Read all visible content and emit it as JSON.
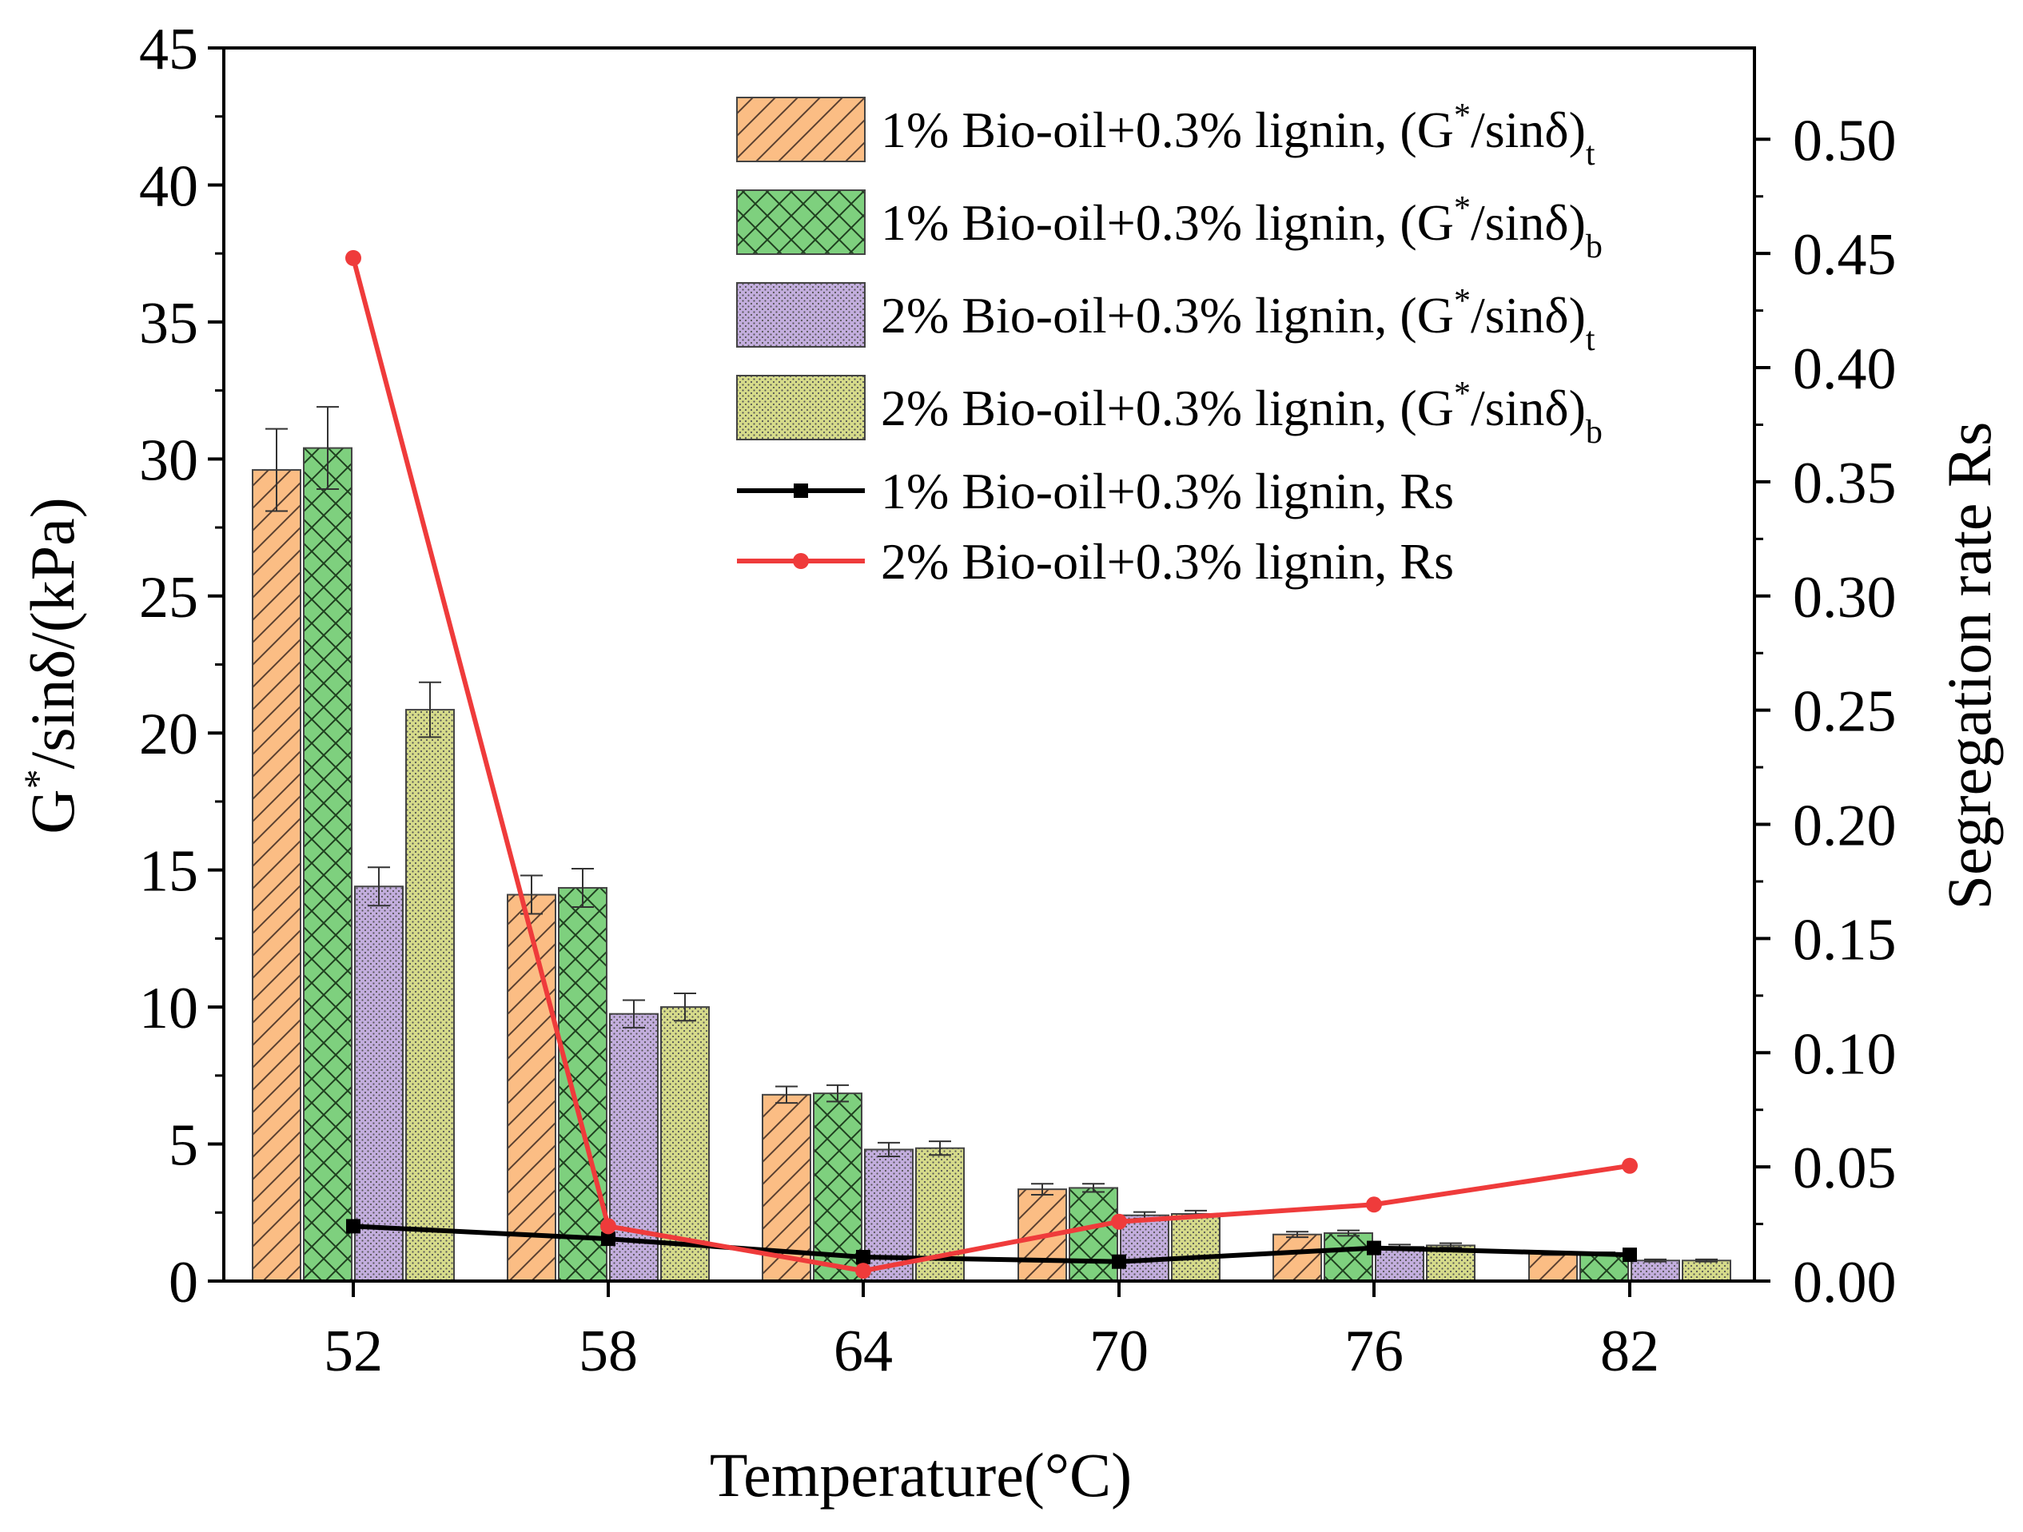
{
  "chart_data": {
    "type": "bar",
    "title": "",
    "xlabel": "Temperature(°C)",
    "ylabel": "G*/sinδ/(kPa)",
    "ylabel_parts": {
      "main": "G",
      "sup": "*",
      "rest": "/sinδ/(kPa)"
    },
    "y2label": "Segregation rate Rs",
    "categories": [
      "52",
      "58",
      "64",
      "70",
      "76",
      "82"
    ],
    "ylim": [
      0,
      45
    ],
    "yticks": [
      "0",
      "5",
      "10",
      "15",
      "20",
      "25",
      "30",
      "35",
      "40",
      "45"
    ],
    "y2lim": [
      0,
      0.54
    ],
    "y2ticks": [
      "0.00",
      "0.05",
      "0.10",
      "0.15",
      "0.20",
      "0.25",
      "0.30",
      "0.35",
      "0.40",
      "0.45",
      "0.50"
    ],
    "legend_position": "top-right",
    "series": [
      {
        "name": "1% Bio-oil+0.3% lignin, (G*/sinδ)t",
        "label_main": "1% Bio-oil+0.3% lignin, (G",
        "label_sup": "*",
        "label_mid": "/sinδ)",
        "label_sub": "t",
        "kind": "bar",
        "color": "#fbbd84",
        "pattern": "diag",
        "values": [
          29.6,
          14.1,
          6.8,
          3.35,
          1.7,
          1.0
        ],
        "errors": [
          1.5,
          0.7,
          0.3,
          0.2,
          0.1,
          0.05
        ]
      },
      {
        "name": "1% Bio-oil+0.3% lignin, (G*/sinδ)b",
        "label_main": "1% Bio-oil+0.3% lignin, (G",
        "label_sup": "*",
        "label_mid": "/sinδ)",
        "label_sub": "b",
        "kind": "bar",
        "color": "#7ed07e",
        "pattern": "cross",
        "values": [
          30.4,
          14.35,
          6.85,
          3.4,
          1.75,
          1.0
        ],
        "errors": [
          1.5,
          0.7,
          0.3,
          0.15,
          0.1,
          0.05
        ]
      },
      {
        "name": "2% Bio-oil+0.3% lignin, (G*/sinδ)t",
        "label_main": "2% Bio-oil+0.3% lignin, (G",
        "label_sup": "*",
        "label_mid": "/sinδ)",
        "label_sub": "t",
        "kind": "bar",
        "color": "#c3aede",
        "pattern": "dots",
        "values": [
          14.4,
          9.75,
          4.8,
          2.4,
          1.25,
          0.75
        ],
        "errors": [
          0.7,
          0.5,
          0.25,
          0.12,
          0.08,
          0.04
        ]
      },
      {
        "name": "2% Bio-oil+0.3% lignin, (G*/sinδ)b",
        "label_main": "2% Bio-oil+0.3% lignin, (G",
        "label_sup": "*",
        "label_mid": "/sinδ)",
        "label_sub": "b",
        "kind": "bar",
        "color": "#d6db8a",
        "pattern": "dots",
        "values": [
          20.85,
          10.0,
          4.85,
          2.45,
          1.3,
          0.75
        ],
        "errors": [
          1.0,
          0.5,
          0.25,
          0.12,
          0.08,
          0.04
        ]
      },
      {
        "name": "1% Bio-oil+0.3% lignin, Rs",
        "kind": "line",
        "axis": "right",
        "color": "#000000",
        "marker": "square",
        "values": [
          0.024,
          0.0185,
          0.0105,
          0.0085,
          0.0145,
          0.0115
        ]
      },
      {
        "name": "2% Bio-oil+0.3% lignin, Rs",
        "kind": "line",
        "axis": "right",
        "color": "#ef3b3b",
        "marker": "circle",
        "values": [
          0.448,
          0.024,
          0.0045,
          0.026,
          0.0335,
          0.0505
        ]
      }
    ]
  }
}
